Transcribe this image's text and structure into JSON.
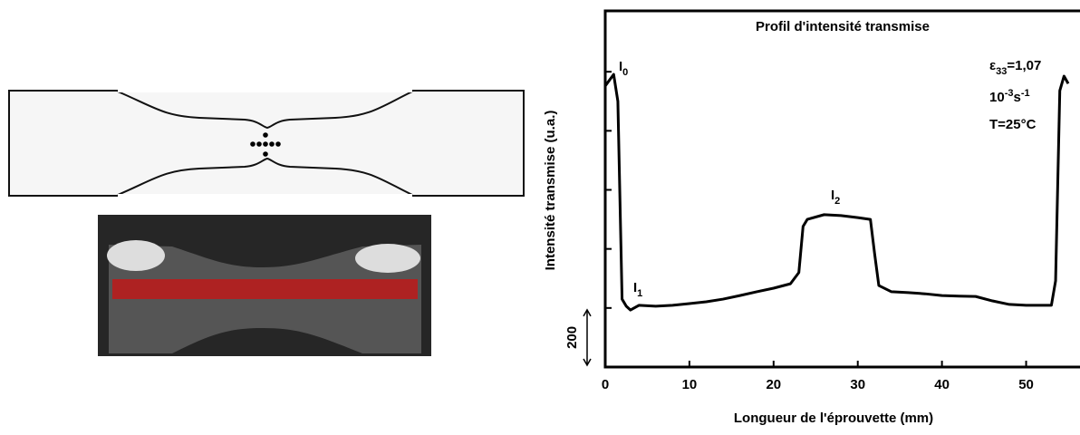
{
  "chart_data": {
    "type": "line",
    "title": "Profil d'intensité transmise",
    "xlabel": "Longueur de l'éprouvette (mm)",
    "ylabel": "Intensité transmise (u.a.)",
    "x": [
      0,
      1,
      1.5,
      2,
      2.5,
      3,
      4,
      6,
      8,
      10,
      12,
      14,
      16,
      18,
      20,
      22,
      23,
      23.5,
      24,
      26,
      28,
      30,
      31.5,
      32,
      32.5,
      34,
      36,
      38,
      40,
      42,
      44,
      46,
      48,
      50,
      53,
      53.5,
      54,
      54.5,
      55
    ],
    "series": [
      {
        "name": "Profil",
        "color": "#000000",
        "values": [
          952,
          991,
          900,
          230,
          206,
          193,
          209,
          206,
          209,
          215,
          221,
          230,
          242,
          255,
          267,
          282,
          320,
          476,
          500,
          516,
          513,
          506,
          500,
          384,
          276,
          255,
          252,
          248,
          242,
          240,
          239,
          224,
          212,
          209,
          209,
          292,
          936,
          985,
          960
        ]
      }
    ],
    "xlim": [
      0,
      55
    ],
    "xticks": [
      0,
      10,
      20,
      30,
      40,
      50
    ],
    "ylim": [
      0,
      1200
    ],
    "yticks": [
      200,
      400,
      600,
      800,
      1000
    ],
    "scale_bar": {
      "value": 200,
      "label": "200"
    },
    "annotations": {
      "i0": {
        "base": "I",
        "sub": "0"
      },
      "i1": {
        "base": "I",
        "sub": "1"
      },
      "i2": {
        "base": "I",
        "sub": "2"
      },
      "strain": {
        "symbol": "ε",
        "sub": "33",
        "rest": "=1,07"
      },
      "rate": {
        "base": "10",
        "sup1": "-3",
        "unit": "s",
        "sup2": "-1"
      },
      "temp": "T=25°C"
    }
  }
}
